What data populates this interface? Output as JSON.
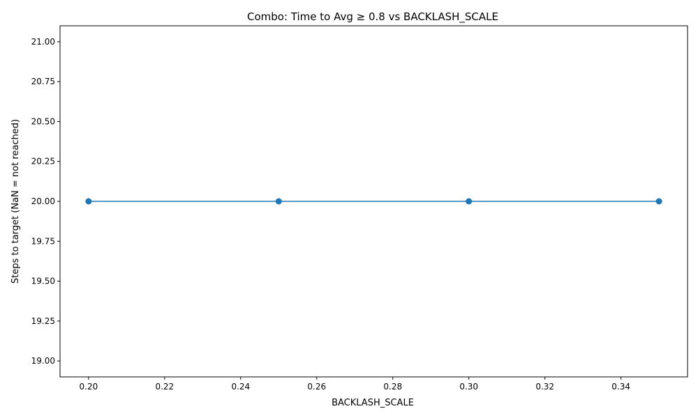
{
  "chart_data": {
    "type": "line",
    "title": "Combo: Time to Avg ≥ 0.8 vs BACKLASH_SCALE",
    "xlabel": "BACKLASH_SCALE",
    "ylabel": "Steps to target (NaN = not reached)",
    "x": [
      0.2,
      0.25,
      0.3,
      0.35
    ],
    "series": [
      {
        "values": [
          20,
          20,
          20,
          20
        ]
      }
    ],
    "xlim": [
      0.1925,
      0.3575
    ],
    "ylim": [
      18.9,
      21.1
    ],
    "xticks": [
      "0.20",
      "0.22",
      "0.24",
      "0.26",
      "0.28",
      "0.30",
      "0.32",
      "0.34"
    ],
    "yticks": [
      "19.00",
      "19.25",
      "19.50",
      "19.75",
      "20.00",
      "20.25",
      "20.50",
      "20.75",
      "21.00"
    ],
    "grid": false,
    "line_color": "#1f77b4",
    "marker": "circle"
  }
}
